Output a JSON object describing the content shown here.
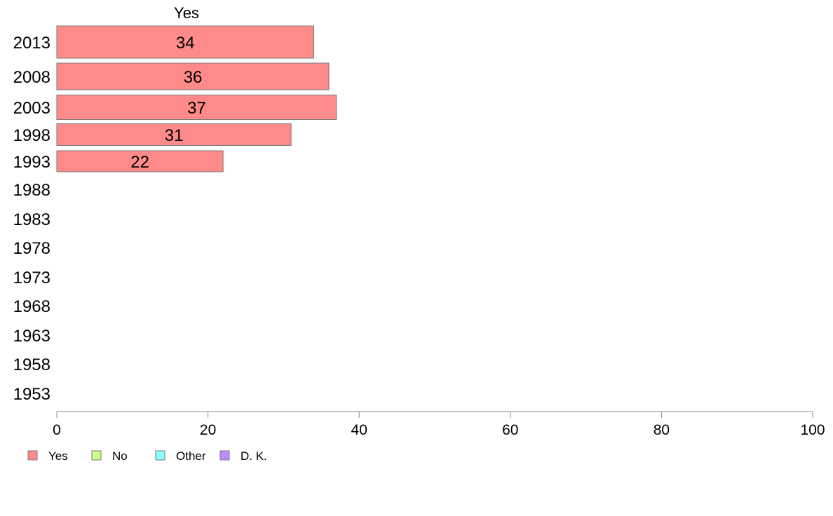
{
  "chart_data": {
    "type": "bar",
    "orientation": "horizontal",
    "stacked": true,
    "header": "Yes",
    "categories": [
      "2013",
      "2008",
      "2003",
      "1998",
      "1993",
      "1988",
      "1983",
      "1978",
      "1973",
      "1968",
      "1963",
      "1958",
      "1953"
    ],
    "series": [
      {
        "name": "Yes",
        "color": "#ff8a8a",
        "values": [
          34,
          36,
          37,
          31,
          22,
          null,
          null,
          null,
          null,
          null,
          null,
          null,
          null
        ]
      },
      {
        "name": "No",
        "color": "#c8ff8a",
        "values": [
          null,
          null,
          null,
          null,
          null,
          null,
          null,
          null,
          null,
          null,
          null,
          null,
          null
        ]
      },
      {
        "name": "Other",
        "color": "#8affff",
        "values": [
          null,
          null,
          null,
          null,
          null,
          null,
          null,
          null,
          null,
          null,
          null,
          null,
          null
        ]
      },
      {
        "name": "D. K.",
        "color": "#c08aff",
        "values": [
          null,
          null,
          null,
          null,
          null,
          null,
          null,
          null,
          null,
          null,
          null,
          null,
          null
        ]
      }
    ],
    "xlim": [
      0,
      100
    ],
    "xticks": [
      0,
      20,
      40,
      60,
      80,
      100
    ],
    "grid": false,
    "legend_position": "bottom-left"
  }
}
